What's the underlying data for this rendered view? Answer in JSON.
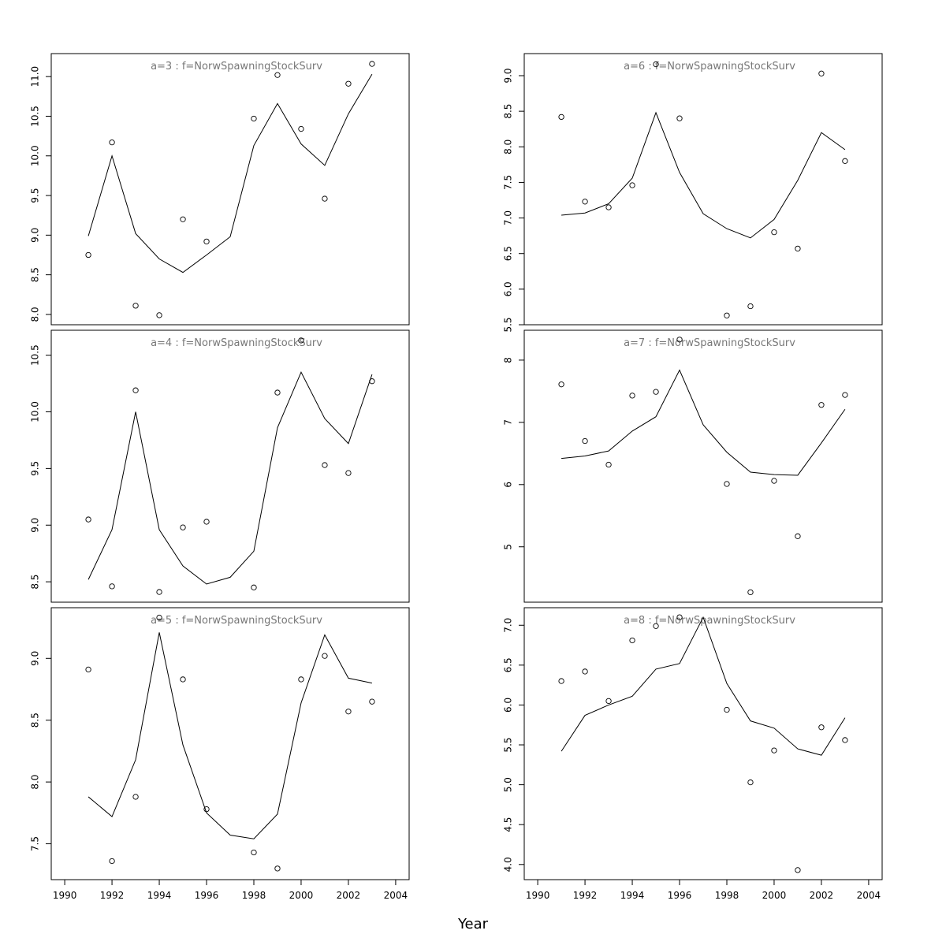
{
  "xlabel": "Year",
  "chart_data": [
    {
      "type": "line",
      "title": "a=3  :  f=NorwSpawningStockSurv",
      "x": [
        1991,
        1992,
        1993,
        1994,
        1995,
        1996,
        1997,
        1998,
        1999,
        2000,
        2001,
        2002,
        2003
      ],
      "series": [
        {
          "style": "line",
          "color": "#000000",
          "values": [
            8.99,
            10.0,
            9.02,
            8.7,
            8.53,
            8.75,
            8.98,
            10.13,
            10.66,
            10.15,
            9.88,
            10.53,
            11.03
          ]
        },
        {
          "style": "points",
          "color": "#000000",
          "values": [
            8.75,
            10.17,
            8.11,
            7.99,
            9.2,
            8.92,
            null,
            10.47,
            11.02,
            10.34,
            9.46,
            10.91,
            11.16
          ]
        }
      ],
      "xlim": [
        1989.43,
        2004.57
      ],
      "ylim": [
        7.87,
        11.29
      ],
      "yticks": [
        {
          "value": 8,
          "label": "8.0"
        },
        8.5,
        {
          "value": 9,
          "label": "9.0"
        },
        9.5,
        {
          "value": 10,
          "label": "10.0"
        },
        10.5,
        {
          "value": 11,
          "label": "11.0"
        }
      ]
    },
    {
      "type": "line",
      "title": "a=6  :  f=NorwSpawningStockSurv",
      "x": [
        1991,
        1992,
        1993,
        1994,
        1995,
        1996,
        1997,
        1998,
        1999,
        2000,
        2001,
        2002,
        2003
      ],
      "series": [
        {
          "style": "line",
          "color": "#000000",
          "values": [
            7.04,
            7.07,
            7.2,
            7.56,
            8.48,
            7.64,
            7.06,
            6.85,
            6.72,
            6.98,
            7.53,
            8.2,
            7.96
          ]
        },
        {
          "style": "points",
          "color": "#000000",
          "values": [
            8.42,
            7.23,
            7.15,
            7.46,
            9.16,
            8.4,
            null,
            5.63,
            5.76,
            6.8,
            6.57,
            9.03,
            7.8
          ]
        }
      ],
      "xlim": [
        1989.43,
        2004.57
      ],
      "ylim": [
        5.5,
        9.31
      ],
      "yticks": [
        5.5,
        {
          "value": 6,
          "label": "6.0"
        },
        6.5,
        {
          "value": 7,
          "label": "7.0"
        },
        7.5,
        {
          "value": 8,
          "label": "8.0"
        },
        8.5,
        {
          "value": 9,
          "label": "9.0"
        }
      ]
    },
    {
      "type": "line",
      "title": "a=4  :  f=NorwSpawningStockSurv",
      "x": [
        1991,
        1992,
        1993,
        1994,
        1995,
        1996,
        1997,
        1998,
        1999,
        2000,
        2001,
        2002,
        2003
      ],
      "series": [
        {
          "style": "line",
          "color": "#000000",
          "values": [
            8.52,
            8.96,
            10.0,
            8.96,
            8.64,
            8.48,
            8.54,
            8.77,
            9.86,
            10.35,
            9.94,
            9.72,
            10.33
          ]
        },
        {
          "style": "points",
          "color": "#000000",
          "values": [
            9.05,
            8.46,
            10.19,
            8.41,
            8.98,
            9.03,
            null,
            8.45,
            10.17,
            10.63,
            9.53,
            9.46,
            10.27
          ]
        }
      ],
      "xlim": [
        1989.43,
        2004.57
      ],
      "ylim": [
        8.32,
        10.72
      ],
      "yticks": [
        8.5,
        {
          "value": 9,
          "label": "9.0"
        },
        9.5,
        {
          "value": 10,
          "label": "10.0"
        },
        10.5
      ]
    },
    {
      "type": "line",
      "title": "a=7  :  f=NorwSpawningStockSurv",
      "x": [
        1991,
        1992,
        1993,
        1994,
        1995,
        1996,
        1997,
        1998,
        1999,
        2000,
        2001,
        2002,
        2003
      ],
      "series": [
        {
          "style": "line",
          "color": "#000000",
          "values": [
            6.42,
            6.46,
            6.54,
            6.86,
            7.09,
            7.84,
            6.96,
            6.52,
            6.2,
            6.16,
            6.15,
            6.67,
            7.21
          ]
        },
        {
          "style": "points",
          "color": "#000000",
          "values": [
            7.61,
            6.7,
            6.32,
            7.43,
            7.49,
            8.33,
            null,
            6.01,
            4.27,
            6.06,
            5.17,
            7.28,
            7.44
          ]
        }
      ],
      "xlim": [
        1989.43,
        2004.57
      ],
      "ylim": [
        4.11,
        8.48
      ],
      "yticks": [
        5,
        6,
        7,
        8
      ]
    },
    {
      "type": "line",
      "title": "a=5  :  f=NorwSpawningStockSurv",
      "x": [
        1991,
        1992,
        1993,
        1994,
        1995,
        1996,
        1997,
        1998,
        1999,
        2000,
        2001,
        2002,
        2003
      ],
      "series": [
        {
          "style": "line",
          "color": "#000000",
          "values": [
            7.88,
            7.72,
            8.18,
            9.21,
            8.3,
            7.75,
            7.57,
            7.54,
            7.74,
            8.64,
            9.19,
            8.84,
            8.8
          ]
        },
        {
          "style": "points",
          "color": "#000000",
          "values": [
            8.91,
            7.36,
            7.88,
            9.33,
            8.83,
            7.78,
            null,
            7.43,
            7.3,
            8.83,
            9.02,
            8.57,
            8.65
          ]
        }
      ],
      "xlim": [
        1989.43,
        2004.57
      ],
      "ylim": [
        7.21,
        9.41
      ],
      "yticks": [
        7.5,
        {
          "value": 8,
          "label": "8.0"
        },
        8.5,
        {
          "value": 9,
          "label": "9.0"
        }
      ],
      "xticks": [
        1990,
        1992,
        1994,
        1996,
        1998,
        2000,
        2002,
        2004
      ]
    },
    {
      "type": "line",
      "title": "a=8  :  f=NorwSpawningStockSurv",
      "x": [
        1991,
        1992,
        1993,
        1994,
        1995,
        1996,
        1997,
        1998,
        1999,
        2000,
        2001,
        2002,
        2003
      ],
      "series": [
        {
          "style": "line",
          "color": "#000000",
          "values": [
            5.42,
            5.87,
            6.0,
            6.11,
            6.45,
            6.52,
            7.1,
            6.27,
            5.8,
            5.71,
            5.45,
            5.37,
            5.84
          ]
        },
        {
          "style": "points",
          "color": "#000000",
          "values": [
            6.3,
            6.42,
            6.05,
            6.81,
            6.99,
            7.1,
            null,
            5.94,
            5.03,
            5.43,
            3.93,
            5.72,
            5.56
          ]
        }
      ],
      "xlim": [
        1989.43,
        2004.57
      ],
      "ylim": [
        3.81,
        7.22
      ],
      "yticks": [
        {
          "value": 4,
          "label": "4.0"
        },
        4.5,
        {
          "value": 5,
          "label": "5.0"
        },
        5.5,
        {
          "value": 6,
          "label": "6.0"
        },
        6.5,
        {
          "value": 7,
          "label": "7.0"
        }
      ],
      "xticks": [
        1990,
        1992,
        1994,
        1996,
        1998,
        2000,
        2002,
        2004
      ]
    }
  ]
}
